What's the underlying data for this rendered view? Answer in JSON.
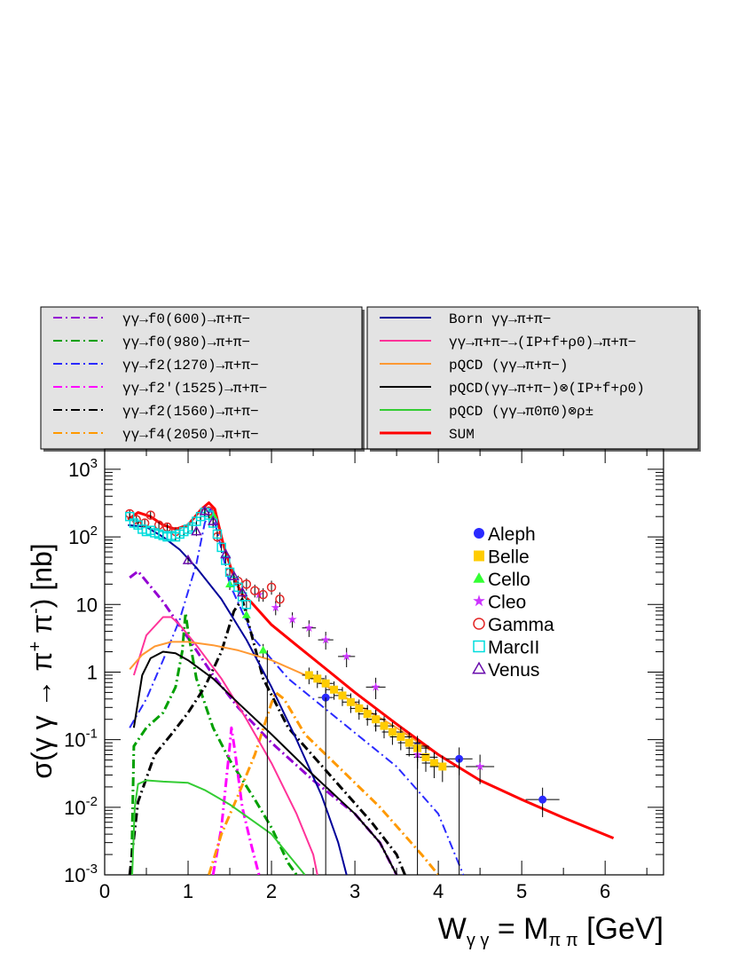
{
  "chart_data": {
    "type": "line",
    "title": "",
    "xlabel": "Wγγ = Mππ [GeV]",
    "ylabel": "σ(γγ → π⁺π⁻) [nb]",
    "x_axis": {
      "min": 0,
      "max": 6.7,
      "scale": "linear",
      "ticks": [
        0,
        1,
        2,
        3,
        4,
        5,
        6
      ],
      "tick_labels": [
        "0",
        "1",
        "2",
        "3",
        "4",
        "5",
        "6"
      ]
    },
    "y_axis": {
      "min": 0.001,
      "max": 2000,
      "scale": "log",
      "labeled_ticks": [
        0.001,
        0.01,
        0.1,
        1,
        10,
        100,
        1000
      ],
      "tick_labels": [
        "10-3",
        "10-2",
        "10-1",
        "1",
        "10",
        "102",
        "103"
      ]
    },
    "legend_left": [
      {
        "label": "γγ→f0(600)→π+π−",
        "color": "#9400d3",
        "style": "dashdot"
      },
      {
        "label": "γγ→f0(980)→π+π−",
        "color": "#00a000",
        "style": "dashdot"
      },
      {
        "label": "γγ→f2(1270)→π+π−",
        "color": "#2a2aff",
        "style": "dashdot"
      },
      {
        "label": "γγ→f2′(1525)→π+π−",
        "color": "#ff00ff",
        "style": "dashdot"
      },
      {
        "label": "γγ→f2(1560)→π+π−",
        "color": "#000000",
        "style": "dashdot"
      },
      {
        "label": "γγ→f4(2050)→π+π−",
        "color": "#ff9900",
        "style": "dashdot"
      }
    ],
    "legend_right": [
      {
        "label": "Born γγ→π+π−",
        "color": "#000099",
        "style": "solid"
      },
      {
        "label": "γγ→π+π−→(IP+f+ρ0)→π+π−",
        "color": "#ff3399",
        "style": "solid"
      },
      {
        "label": "pQCD (γγ→π+π−)",
        "color": "#ff9933",
        "style": "solid"
      },
      {
        "label": "pQCD(γγ→π+π−)⊗(IP+f+ρ0)",
        "color": "#000000",
        "style": "solid"
      },
      {
        "label": "pQCD (γγ→π0π0)⊗ρ±",
        "color": "#33cc33",
        "style": "solid"
      },
      {
        "label": "SUM",
        "color": "#ff0000",
        "style": "solid"
      }
    ],
    "legend_data": [
      "Aleph",
      "Belle",
      "Cello",
      "Cleo",
      "Gamma",
      "MarcII",
      "Venus"
    ],
    "curves": [
      {
        "name": "f0(600)",
        "color": "#9400d3",
        "style": "dashdot",
        "width": 3,
        "points": [
          [
            0.3,
            25
          ],
          [
            0.4,
            31
          ],
          [
            0.5,
            22
          ],
          [
            0.7,
            11
          ],
          [
            1.0,
            3.2
          ],
          [
            1.3,
            0.9
          ],
          [
            1.6,
            0.3
          ],
          [
            2.0,
            0.09
          ],
          [
            2.5,
            0.025
          ],
          [
            3.0,
            0.008
          ],
          [
            3.3,
            0.003
          ],
          [
            3.5,
            0.001
          ]
        ]
      },
      {
        "name": "f0(980)",
        "color": "#00a000",
        "style": "dashdot",
        "width": 3,
        "points": [
          [
            0.32,
            0.001
          ],
          [
            0.35,
            0.08
          ],
          [
            0.5,
            0.15
          ],
          [
            0.7,
            0.25
          ],
          [
            0.85,
            0.6
          ],
          [
            0.93,
            2
          ],
          [
            0.97,
            7.5
          ],
          [
            1.0,
            4
          ],
          [
            1.1,
            0.8
          ],
          [
            1.3,
            0.15
          ],
          [
            1.5,
            0.05
          ],
          [
            1.8,
            0.013
          ],
          [
            2.0,
            0.005
          ],
          [
            2.2,
            0.0015
          ],
          [
            2.3,
            0.001
          ]
        ]
      },
      {
        "name": "f2(1270)",
        "color": "#2a2aff",
        "style": "dashdot",
        "width": 2,
        "points": [
          [
            0.3,
            0.15
          ],
          [
            0.5,
            0.4
          ],
          [
            0.7,
            1.5
          ],
          [
            0.9,
            6
          ],
          [
            1.1,
            40
          ],
          [
            1.2,
            160
          ],
          [
            1.27,
            260
          ],
          [
            1.35,
            120
          ],
          [
            1.5,
            20
          ],
          [
            1.8,
            3
          ],
          [
            2.2,
            0.8
          ],
          [
            2.8,
            0.2
          ],
          [
            3.5,
            0.04
          ],
          [
            4.0,
            0.008
          ],
          [
            4.3,
            0.001
          ]
        ]
      },
      {
        "name": "f2p(1525)",
        "color": "#ff00ff",
        "style": "dashdot",
        "width": 3,
        "points": [
          [
            1.3,
            0.001
          ],
          [
            1.4,
            0.005
          ],
          [
            1.45,
            0.02
          ],
          [
            1.5,
            0.08
          ],
          [
            1.52,
            0.15
          ],
          [
            1.56,
            0.07
          ],
          [
            1.65,
            0.01
          ],
          [
            1.75,
            0.003
          ],
          [
            1.85,
            0.001
          ]
        ]
      },
      {
        "name": "f2(1560)",
        "color": "#000000",
        "style": "dashdot",
        "width": 3,
        "points": [
          [
            0.3,
            0.001
          ],
          [
            0.4,
            0.012
          ],
          [
            0.6,
            0.06
          ],
          [
            0.8,
            0.12
          ],
          [
            1.0,
            0.25
          ],
          [
            1.2,
            0.6
          ],
          [
            1.4,
            2
          ],
          [
            1.55,
            8
          ],
          [
            1.65,
            12
          ],
          [
            1.75,
            4
          ],
          [
            1.9,
            0.8
          ],
          [
            2.2,
            0.15
          ],
          [
            2.7,
            0.03
          ],
          [
            3.2,
            0.006
          ],
          [
            3.5,
            0.002
          ],
          [
            3.6,
            0.001
          ]
        ]
      },
      {
        "name": "f4(2050)",
        "color": "#ff9900",
        "style": "dashdot",
        "width": 3,
        "points": [
          [
            1.25,
            0.001
          ],
          [
            1.4,
            0.004
          ],
          [
            1.6,
            0.015
          ],
          [
            1.8,
            0.06
          ],
          [
            2.0,
            0.35
          ],
          [
            2.05,
            0.5
          ],
          [
            2.15,
            0.4
          ],
          [
            2.4,
            0.12
          ],
          [
            2.8,
            0.04
          ],
          [
            3.3,
            0.01
          ],
          [
            3.8,
            0.002
          ],
          [
            4.0,
            0.001
          ]
        ]
      },
      {
        "name": "Born",
        "color": "#000099",
        "style": "solid",
        "width": 2,
        "points": [
          [
            0.28,
            150
          ],
          [
            0.5,
            140
          ],
          [
            0.7,
            100
          ],
          [
            0.9,
            65
          ],
          [
            1.1,
            35
          ],
          [
            1.4,
            12
          ],
          [
            1.7,
            3
          ],
          [
            2.0,
            0.6
          ],
          [
            2.3,
            0.1
          ],
          [
            2.6,
            0.015
          ],
          [
            2.8,
            0.003
          ],
          [
            2.9,
            0.001
          ]
        ]
      },
      {
        "name": "IP+f+rho0",
        "color": "#ff3399",
        "style": "solid",
        "width": 2,
        "points": [
          [
            0.35,
            0.9
          ],
          [
            0.5,
            3.5
          ],
          [
            0.7,
            6.5
          ],
          [
            0.8,
            6.5
          ],
          [
            0.9,
            5
          ],
          [
            1.1,
            2.5
          ],
          [
            1.4,
            0.8
          ],
          [
            1.7,
            0.2
          ],
          [
            2.0,
            0.045
          ],
          [
            2.3,
            0.008
          ],
          [
            2.5,
            0.002
          ],
          [
            2.55,
            0.001
          ]
        ]
      },
      {
        "name": "pQCD",
        "color": "#ff9933",
        "style": "solid",
        "width": 2,
        "points": [
          [
            0.3,
            1.1
          ],
          [
            0.45,
            1.8
          ],
          [
            0.6,
            2.4
          ],
          [
            0.8,
            2.8
          ],
          [
            1.0,
            2.8
          ],
          [
            1.3,
            2.5
          ],
          [
            1.6,
            2.1
          ],
          [
            2.0,
            1.5
          ],
          [
            2.5,
            0.8
          ],
          [
            3.0,
            0.35
          ],
          [
            3.5,
            0.15
          ],
          [
            3.9,
            0.07
          ]
        ]
      },
      {
        "name": "pQCDxIPfrho",
        "color": "#000000",
        "style": "solid",
        "width": 2,
        "points": [
          [
            0.35,
            0.15
          ],
          [
            0.45,
            0.9
          ],
          [
            0.55,
            1.6
          ],
          [
            0.7,
            2
          ],
          [
            0.85,
            1.9
          ],
          [
            1.0,
            1.5
          ],
          [
            1.3,
            0.8
          ],
          [
            1.6,
            0.35
          ],
          [
            2.0,
            0.12
          ],
          [
            2.5,
            0.03
          ],
          [
            3.0,
            0.008
          ],
          [
            3.3,
            0.003
          ],
          [
            3.5,
            0.001
          ]
        ]
      },
      {
        "name": "pQCDrho",
        "color": "#33cc33",
        "style": "solid",
        "width": 2,
        "points": [
          [
            0.33,
            0.001
          ],
          [
            0.36,
            0.01
          ],
          [
            0.4,
            0.022
          ],
          [
            0.5,
            0.025
          ],
          [
            0.7,
            0.024
          ],
          [
            1.0,
            0.023
          ],
          [
            1.2,
            0.018
          ],
          [
            1.5,
            0.011
          ],
          [
            1.8,
            0.006
          ],
          [
            2.0,
            0.004
          ],
          [
            2.2,
            0.002
          ],
          [
            2.4,
            0.001
          ]
        ]
      },
      {
        "name": "SUM",
        "color": "#ff0000",
        "style": "solid",
        "width": 3,
        "points": [
          [
            0.28,
            180
          ],
          [
            0.4,
            230
          ],
          [
            0.55,
            200
          ],
          [
            0.7,
            150
          ],
          [
            0.85,
            130
          ],
          [
            1.0,
            150
          ],
          [
            1.15,
            250
          ],
          [
            1.25,
            320
          ],
          [
            1.32,
            260
          ],
          [
            1.42,
            80
          ],
          [
            1.55,
            25
          ],
          [
            1.65,
            14
          ],
          [
            1.75,
            11
          ],
          [
            2.0,
            5
          ],
          [
            2.3,
            2.5
          ],
          [
            2.7,
            1
          ],
          [
            3.0,
            0.5
          ],
          [
            3.5,
            0.17
          ],
          [
            4.0,
            0.06
          ],
          [
            4.5,
            0.025
          ],
          [
            5.0,
            0.013
          ],
          [
            5.5,
            0.007
          ],
          [
            6.1,
            0.0035
          ]
        ]
      }
    ],
    "data_series": [
      {
        "name": "Aleph",
        "marker": "circle",
        "color": "#2a2aff",
        "points": [
          [
            2.65,
            0.42
          ],
          [
            3.25,
            0.2
          ],
          [
            3.75,
            0.08
          ],
          [
            4.25,
            0.052
          ],
          [
            5.25,
            0.013
          ]
        ]
      },
      {
        "name": "Belle",
        "marker": "square",
        "color": "#ffcc00",
        "points": [
          [
            2.45,
            0.9
          ],
          [
            2.55,
            0.8
          ],
          [
            2.65,
            0.68
          ],
          [
            2.75,
            0.55
          ],
          [
            2.85,
            0.45
          ],
          [
            2.95,
            0.36
          ],
          [
            3.05,
            0.29
          ],
          [
            3.15,
            0.24
          ],
          [
            3.25,
            0.2
          ],
          [
            3.35,
            0.16
          ],
          [
            3.45,
            0.13
          ],
          [
            3.55,
            0.11
          ],
          [
            3.65,
            0.09
          ],
          [
            3.75,
            0.075
          ],
          [
            3.85,
            0.055
          ],
          [
            3.95,
            0.045
          ],
          [
            4.05,
            0.04
          ]
        ]
      },
      {
        "name": "Cello",
        "marker": "triangle",
        "color": "#33ff33",
        "points": [
          [
            1.3,
            210
          ],
          [
            1.5,
            20
          ],
          [
            1.7,
            7
          ],
          [
            1.9,
            2.1
          ]
        ]
      },
      {
        "name": "Cleo",
        "marker": "star",
        "color": "#cc33ff",
        "points": [
          [
            1.85,
            14
          ],
          [
            2.05,
            9
          ],
          [
            2.25,
            6
          ],
          [
            2.45,
            4.5
          ],
          [
            2.65,
            3
          ],
          [
            2.9,
            1.7
          ],
          [
            3.25,
            0.6
          ],
          [
            3.75,
            0.06
          ],
          [
            4.5,
            0.04
          ]
        ]
      },
      {
        "name": "Gamma",
        "marker": "opencircle",
        "color": "#e32626",
        "points": [
          [
            0.3,
            220
          ],
          [
            0.38,
            180
          ],
          [
            0.48,
            160
          ],
          [
            0.55,
            210
          ],
          [
            0.65,
            150
          ],
          [
            0.75,
            140
          ],
          [
            0.85,
            120
          ],
          [
            1.25,
            240
          ],
          [
            1.35,
            100
          ],
          [
            1.5,
            30
          ],
          [
            1.6,
            22
          ],
          [
            1.7,
            20
          ],
          [
            1.8,
            16
          ],
          [
            1.9,
            14
          ],
          [
            2.0,
            18
          ],
          [
            2.1,
            12
          ]
        ]
      },
      {
        "name": "MarcII",
        "marker": "opensquare",
        "color": "#00dddd",
        "points": [
          [
            0.3,
            200
          ],
          [
            0.35,
            160
          ],
          [
            0.4,
            150
          ],
          [
            0.45,
            130
          ],
          [
            0.5,
            120
          ],
          [
            0.55,
            125
          ],
          [
            0.6,
            115
          ],
          [
            0.65,
            110
          ],
          [
            0.7,
            105
          ],
          [
            0.75,
            100
          ],
          [
            0.8,
            105
          ],
          [
            0.85,
            100
          ],
          [
            0.9,
            110
          ],
          [
            0.95,
            120
          ],
          [
            1.0,
            130
          ],
          [
            1.05,
            140
          ],
          [
            1.1,
            170
          ],
          [
            1.15,
            200
          ],
          [
            1.2,
            230
          ],
          [
            1.25,
            210
          ],
          [
            1.3,
            160
          ],
          [
            1.35,
            110
          ],
          [
            1.4,
            70
          ],
          [
            1.45,
            45
          ],
          [
            1.5,
            30
          ],
          [
            1.55,
            22
          ],
          [
            1.6,
            18
          ],
          [
            1.65,
            13
          ],
          [
            1.7,
            10
          ]
        ]
      },
      {
        "name": "Venus",
        "marker": "opentriangle",
        "color": "#6a0dad",
        "points": [
          [
            1.0,
            45
          ],
          [
            1.1,
            120
          ],
          [
            1.2,
            240
          ],
          [
            1.3,
            170
          ],
          [
            1.45,
            55
          ],
          [
            1.55,
            26
          ],
          [
            1.65,
            15
          ]
        ]
      }
    ]
  }
}
